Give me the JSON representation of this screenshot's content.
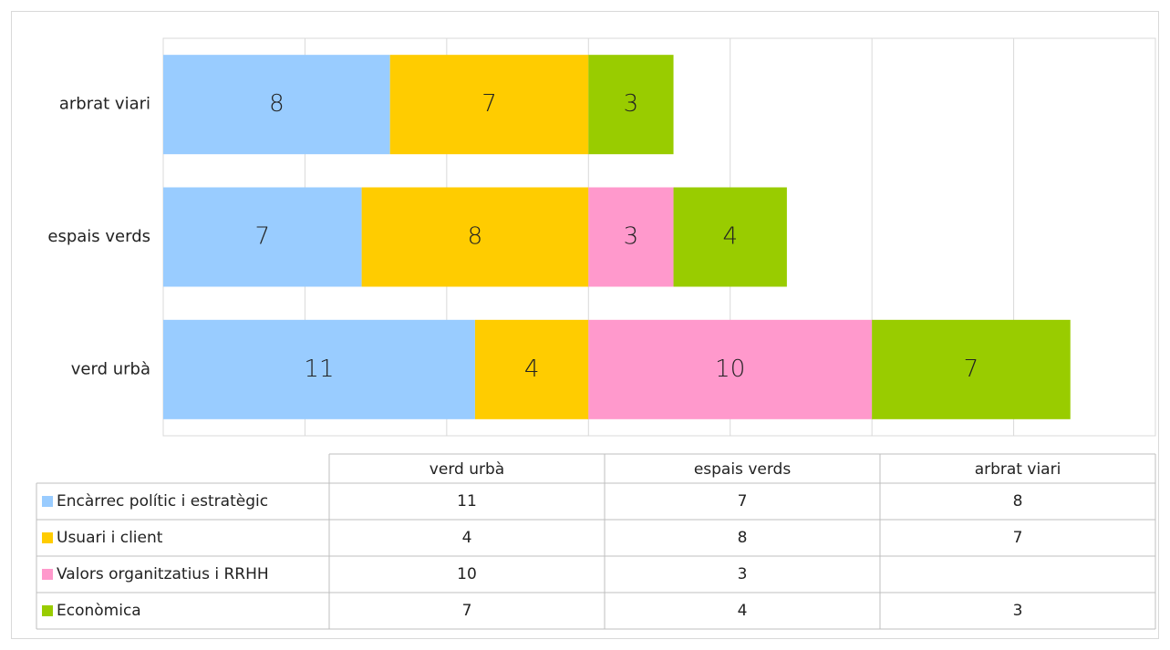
{
  "chart_data": {
    "type": "stacked_bar_horizontal",
    "categories": [
      "verd urbà",
      "espais verds",
      "arbrat viari"
    ],
    "series": [
      {
        "name": "Encàrrec polític i estratègic",
        "color": "#99ccff",
        "values": [
          11,
          7,
          8
        ]
      },
      {
        "name": "Usuari i client",
        "color": "#ffcc00",
        "values": [
          4,
          8,
          7
        ]
      },
      {
        "name": "Valors organitzatius i RRHH",
        "color": "#ff99cc",
        "values": [
          10,
          3,
          null
        ]
      },
      {
        "name": "Econòmica",
        "color": "#99cc00",
        "values": [
          7,
          4,
          3
        ]
      }
    ],
    "xlim": [
      0,
      35
    ],
    "xticks": [
      0,
      5,
      10,
      15,
      20,
      25,
      30,
      35
    ],
    "grid": true,
    "data_table": true
  }
}
